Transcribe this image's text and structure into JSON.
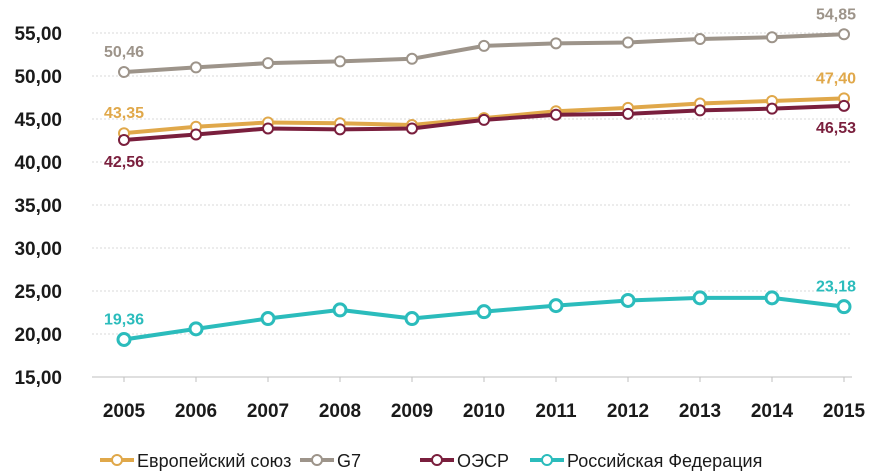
{
  "chart_data": {
    "type": "line",
    "x": [
      "2005",
      "2006",
      "2007",
      "2008",
      "2009",
      "2010",
      "2011",
      "2012",
      "2013",
      "2014",
      "2015"
    ],
    "y_ticks": [
      "55,00",
      "50,00",
      "45,00",
      "40,00",
      "35,00",
      "30,00",
      "25,00",
      "20,00",
      "15,00"
    ],
    "ylim": [
      15,
      55
    ],
    "grid": true,
    "legend_position": "bottom",
    "series": [
      {
        "key": "eu",
        "name": "Европейский союз",
        "color": "#e0a84a",
        "values": [
          43.35,
          44.1,
          44.6,
          44.5,
          44.3,
          45.1,
          45.9,
          46.3,
          46.8,
          47.1,
          47.4
        ],
        "labels": [
          {
            "index": 0,
            "text": "43,35",
            "pos": "above"
          },
          {
            "index": 10,
            "text": "47,40",
            "pos": "above"
          }
        ]
      },
      {
        "key": "g7",
        "name": "G7",
        "color": "#9d948a",
        "values": [
          50.46,
          51.0,
          51.5,
          51.7,
          52.0,
          53.5,
          53.8,
          53.9,
          54.3,
          54.5,
          54.85
        ],
        "labels": [
          {
            "index": 0,
            "text": "50,46",
            "pos": "above"
          },
          {
            "index": 10,
            "text": "54,85",
            "pos": "above"
          }
        ]
      },
      {
        "key": "oecd",
        "name": "ОЭСР",
        "color": "#7a1f3d",
        "values": [
          42.56,
          43.2,
          43.9,
          43.8,
          43.9,
          44.9,
          45.5,
          45.6,
          46.0,
          46.2,
          46.53
        ],
        "labels": [
          {
            "index": 0,
            "text": "42,56",
            "pos": "below"
          },
          {
            "index": 10,
            "text": "46,53",
            "pos": "below"
          }
        ]
      },
      {
        "key": "ru",
        "name": "Российская Федерация",
        "color": "#2bbcbc",
        "values": [
          19.36,
          20.6,
          21.8,
          22.8,
          21.8,
          22.6,
          23.3,
          23.9,
          24.2,
          24.2,
          23.18
        ],
        "labels": [
          {
            "index": 0,
            "text": "19,36",
            "pos": "above"
          },
          {
            "index": 10,
            "text": "23,18",
            "pos": "above"
          }
        ]
      }
    ],
    "legend": [
      {
        "series": "eu",
        "label": "Европейский союз",
        "color": "#e0a84a"
      },
      {
        "series": "g7",
        "label": "G7",
        "color": "#9d948a"
      },
      {
        "series": "oecd",
        "label": "ОЭСР",
        "color": "#7a1f3d"
      },
      {
        "series": "ru",
        "label": "Российская Федерация",
        "color": "#2bbcbc"
      }
    ]
  }
}
